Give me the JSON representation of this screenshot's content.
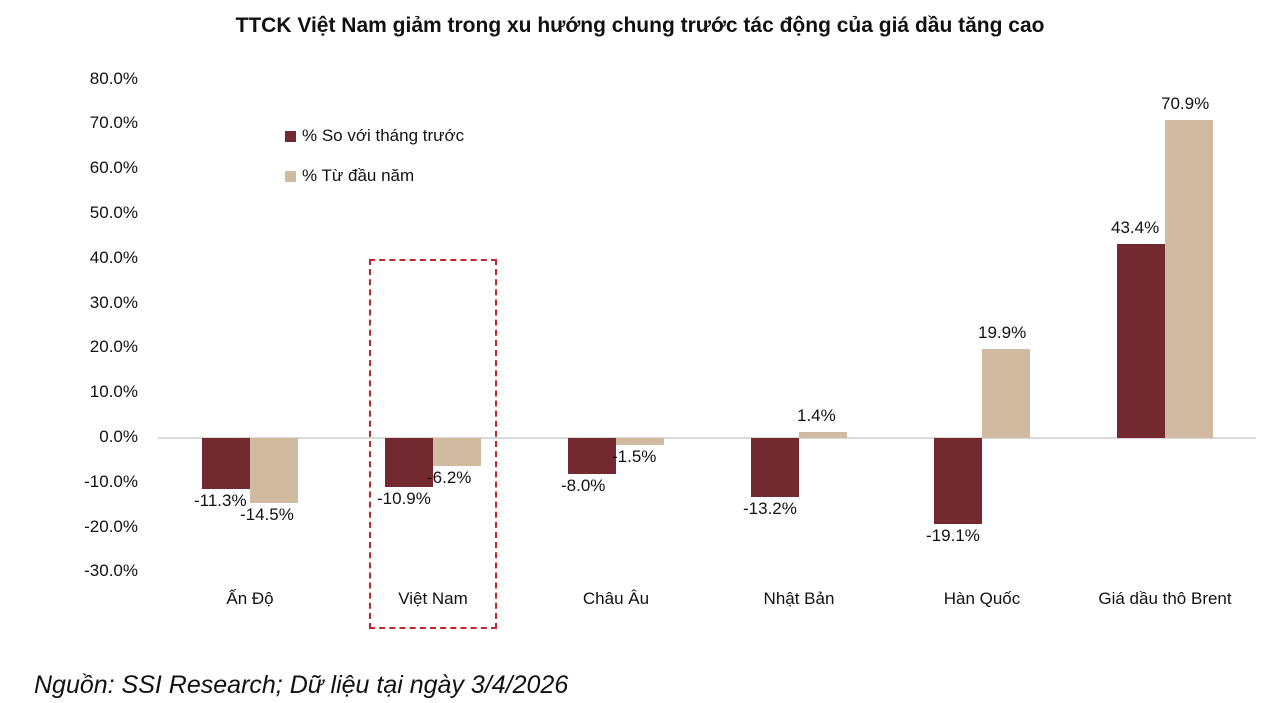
{
  "title": "TTCK Việt Nam giảm trong xu hướng chung trước tác động của giá dầu tăng cao",
  "legend": [
    {
      "label": "% So với tháng trước",
      "color": "#722a30"
    },
    {
      "label": "% Từ đầu năm",
      "color": "#d0bba0"
    }
  ],
  "yaxis": {
    "ticks": [
      "80.0%",
      "70.0%",
      "60.0%",
      "50.0%",
      "40.0%",
      "30.0%",
      "20.0%",
      "10.0%",
      "0.0%",
      "-10.0%",
      "-20.0%",
      "-30.0%"
    ]
  },
  "categories": [
    "Ấn Độ",
    "Việt Nam",
    "Châu Âu",
    "Nhật Bản",
    "Hàn Quốc",
    "Giá dầu thô Brent"
  ],
  "labels": {
    "mom": [
      "-11.3%",
      "-10.9%",
      "-8.0%",
      "-13.2%",
      "-19.1%",
      "43.4%"
    ],
    "ytd": [
      "-14.5%",
      "-6.2%",
      "-1.5%",
      "1.4%",
      "19.9%",
      "70.9%"
    ]
  },
  "highlight_category": "Việt Nam",
  "source": "Nguồn: SSI Research; Dữ liệu tại ngày 3/4/2026",
  "chart_data": {
    "type": "bar",
    "title": "TTCK Việt Nam giảm trong xu hướng chung trước tác động của giá dầu tăng cao",
    "categories": [
      "Ấn Độ",
      "Việt Nam",
      "Châu Âu",
      "Nhật Bản",
      "Hàn Quốc",
      "Giá dầu thô Brent"
    ],
    "series": [
      {
        "name": "% So với tháng trước",
        "color": "#722a30",
        "values": [
          -11.3,
          -10.9,
          -8.0,
          -13.2,
          -19.1,
          43.4
        ]
      },
      {
        "name": "% Từ đầu năm",
        "color": "#d0bba0",
        "values": [
          -14.5,
          -6.2,
          -1.5,
          1.4,
          19.9,
          70.9
        ]
      }
    ],
    "xlabel": "",
    "ylabel": "",
    "ylim": [
      -30,
      80
    ],
    "ytick_step": 10,
    "grid": false,
    "legend_position": "upper-left-inside",
    "annotations": [
      "Dashed red box highlighting Việt Nam"
    ],
    "source": "Nguồn: SSI Research; Dữ liệu tại ngày 3/4/2026"
  }
}
